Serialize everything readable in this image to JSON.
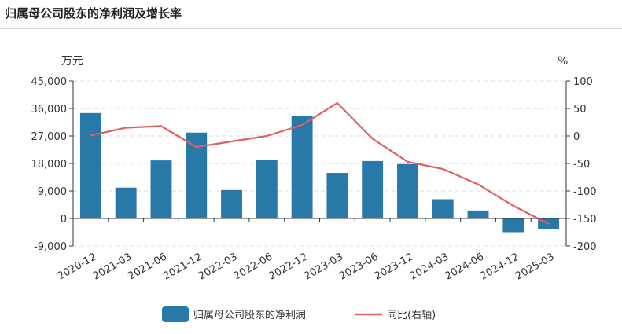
{
  "header": {
    "title": "归属母公司股东的净利润及增长率"
  },
  "chart_data": {
    "type": "bar",
    "categories": [
      "2020-12",
      "2021-03",
      "2021-06",
      "2021-12",
      "2022-03",
      "2022-06",
      "2022-12",
      "2023-03",
      "2023-06",
      "2023-12",
      "2024-03",
      "2024-06",
      "2024-12",
      "2025-03"
    ],
    "series": [
      {
        "name": "归属母公司股东的净利润",
        "type": "bar",
        "axis": "left",
        "color": "#2878a8",
        "values": [
          34500,
          10100,
          19000,
          28100,
          9300,
          19200,
          33600,
          14900,
          18800,
          17800,
          6300,
          2600,
          -4500,
          -3500
        ]
      },
      {
        "name": "同比(右轴)",
        "type": "line",
        "axis": "right",
        "color": "#e06060",
        "values": [
          1,
          15,
          18,
          -20,
          -10,
          0,
          20,
          60,
          -5,
          -47,
          -60,
          -88,
          -127,
          -160
        ]
      }
    ],
    "y_left": {
      "unit": "万元",
      "min": -9000,
      "max": 45000,
      "ticks": [
        "45,000",
        "36,000",
        "27,000",
        "18,000",
        "9,000",
        "0",
        "-9,000"
      ]
    },
    "y_right": {
      "unit": "%",
      "min": -200,
      "max": 100,
      "ticks": [
        "100",
        "50",
        "0",
        "-50",
        "-100",
        "-150",
        "-200"
      ]
    },
    "grid": true,
    "legend_position": "bottom"
  }
}
